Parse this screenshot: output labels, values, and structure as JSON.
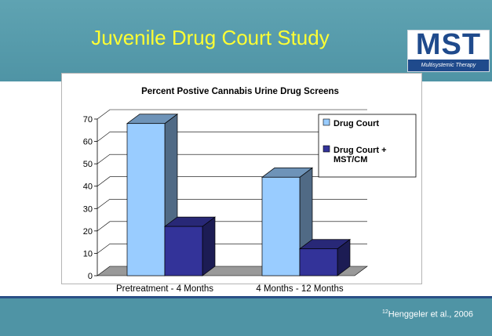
{
  "slide": {
    "title": "Juvenile Drug Court Study",
    "logo_text": "MST",
    "logo_subtitle": "Multisystemic Therapy",
    "citation_number": "12",
    "citation_text": "Henggeler et al., 2006"
  },
  "colors": {
    "header_bg": "#4f94a5",
    "title_text": "#ffff33",
    "series_light": "#99ccff",
    "series_dark": "#333399"
  },
  "chart_data": {
    "type": "bar",
    "title": "Percent Postive Cannabis Urine Drug Screens",
    "categories": [
      "Pretreatment - 4 Months",
      "4 Months - 12 Months"
    ],
    "series": [
      {
        "name": "Drug Court",
        "values": [
          68,
          44
        ],
        "color": "#99ccff"
      },
      {
        "name": "Drug Court + MST/CM",
        "values": [
          22,
          12
        ],
        "color": "#333399"
      }
    ],
    "yticks": [
      0,
      10,
      20,
      30,
      40,
      50,
      60,
      70
    ],
    "ylim": [
      0,
      70
    ],
    "xlabel": "",
    "ylabel": "",
    "legend_position": "right",
    "three_d": true
  }
}
